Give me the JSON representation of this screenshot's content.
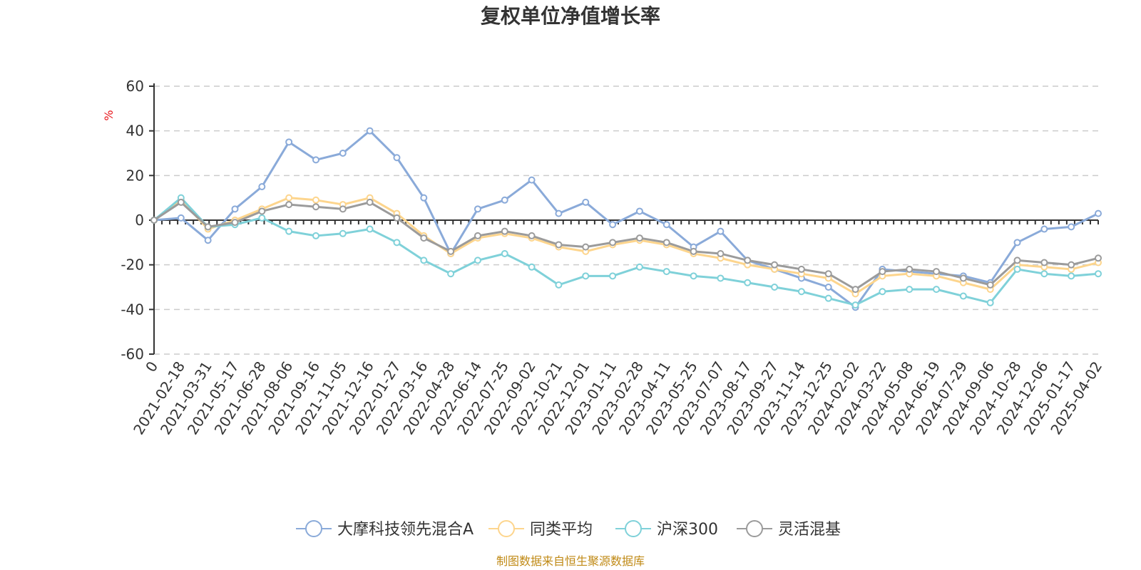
{
  "footer": "制图数据来自恒生聚源数据库",
  "chart_data": {
    "type": "line",
    "title": "复权单位净值增长率",
    "ylabel": "%",
    "xlabel": "",
    "ylim": [
      -60,
      60
    ],
    "y_ticks": [
      "60",
      "40",
      "20",
      "0",
      "-20",
      "-40",
      "-60"
    ],
    "grid": true,
    "legend_position": "bottom-center",
    "categories": [
      "0",
      "2021-02-18",
      "2021-03-31",
      "2021-05-17",
      "2021-06-28",
      "2021-08-06",
      "2021-09-16",
      "2021-11-05",
      "2021-12-16",
      "2022-01-27",
      "2022-03-16",
      "2022-04-28",
      "2022-06-14",
      "2022-07-25",
      "2022-09-02",
      "2022-10-21",
      "2022-12-01",
      "2023-01-11",
      "2023-02-28",
      "2023-04-11",
      "2023-05-25",
      "2023-07-07",
      "2023-08-17",
      "2023-09-27",
      "2023-11-14",
      "2023-12-25",
      "2024-02-02",
      "2024-03-22",
      "2024-05-08",
      "2024-06-19",
      "2024-07-29",
      "2024-09-06",
      "2024-10-28",
      "2024-12-06",
      "2025-01-17",
      "2025-04-02"
    ],
    "series": [
      {
        "name": "大摩科技领先混合A",
        "color": "#8aaad9",
        "values": [
          0,
          1,
          -9,
          5,
          15,
          35,
          27,
          30,
          40,
          28,
          10,
          -15,
          5,
          9,
          18,
          3,
          8,
          -2,
          4,
          -2,
          -12,
          -5,
          -18,
          -22,
          -26,
          -30,
          -39,
          -22,
          -23,
          -24,
          -25,
          -28,
          -10,
          -4,
          -3,
          3
        ]
      },
      {
        "name": "同类平均",
        "color": "#fdd58d",
        "values": [
          0,
          9,
          -4,
          0,
          5,
          10,
          9,
          7,
          10,
          3,
          -7,
          -15,
          -8,
          -6,
          -8,
          -12,
          -14,
          -11,
          -9,
          -11,
          -15,
          -17,
          -20,
          -22,
          -24,
          -26,
          -33,
          -25,
          -24,
          -25,
          -28,
          -31,
          -20,
          -21,
          -22,
          -19
        ]
      },
      {
        "name": "沪深300",
        "color": "#7fd1d9",
        "values": [
          0,
          10,
          -3,
          -2,
          1,
          -5,
          -7,
          -6,
          -4,
          -10,
          -18,
          -24,
          -18,
          -15,
          -21,
          -29,
          -25,
          -25,
          -21,
          -23,
          -25,
          -26,
          -28,
          -30,
          -32,
          -35,
          -38,
          -32,
          -31,
          -31,
          -34,
          -37,
          -22,
          -24,
          -25,
          -24
        ]
      },
      {
        "name": "灵活混基",
        "color": "#9b9b9b",
        "values": [
          0,
          8,
          -3,
          -1,
          4,
          7,
          6,
          5,
          8,
          1,
          -8,
          -14,
          -7,
          -5,
          -7,
          -11,
          -12,
          -10,
          -8,
          -10,
          -14,
          -15,
          -18,
          -20,
          -22,
          -24,
          -31,
          -23,
          -22,
          -23,
          -26,
          -29,
          -18,
          -19,
          -20,
          -17
        ]
      }
    ]
  }
}
